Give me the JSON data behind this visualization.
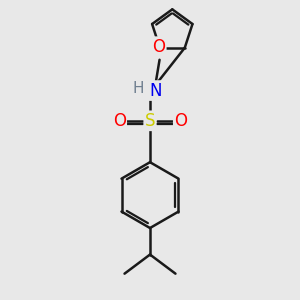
{
  "bg_color": "#e8e8e8",
  "bond_color": "#1a1a1a",
  "N_color": "#0000ee",
  "O_color": "#ff0000",
  "S_color": "#cccc00",
  "H_color": "#708090",
  "bond_width": 1.8,
  "font_size": 11,
  "figsize": [
    3.0,
    3.0
  ],
  "dpi": 100,
  "xlim": [
    -1.5,
    1.5
  ],
  "ylim": [
    -2.8,
    2.8
  ]
}
